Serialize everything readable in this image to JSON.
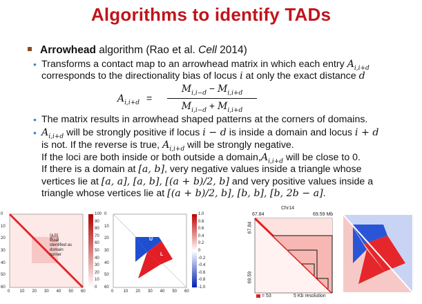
{
  "title": "Algorithms to identify TADs",
  "main_bullet": {
    "bold": "Arrowhead",
    "rest": " algorithm (Rao et al. ",
    "journal": "Cell",
    "year": " 2014)"
  },
  "bullet1": {
    "line1_pre": "Transforms a contact map to an arrowhead matrix in which each entry ",
    "line1_math": "A",
    "line1_sub": "i,i+d",
    "line2_pre": "corresponds to the directionality bias of locus ",
    "line2_var": "i",
    "line2_mid": " at only the exact distance ",
    "line2_var2": "d"
  },
  "formula": {
    "lhs": "A",
    "lhs_sub": "i,i+d",
    "eq": "=",
    "numerator": "M",
    "numerator_sub_a": "i,i−d",
    "minus": " − ",
    "numerator_b": "M",
    "numerator_sub_b": "i,i+d",
    "denominator": "M",
    "denominator_sub_a": "i,i−d",
    "plus": " + ",
    "denominator_b": "M",
    "denominator_sub_b": "i,i+d"
  },
  "bullet2": "The matrix results in arrowhead shaped patterns at the corners of domains.",
  "bullet3": {
    "l1_a": "A",
    "l1_sub": "i,i+d",
    "l1_b": " will be strongly positive if locus ",
    "l1_c": "i − d",
    "l1_d": " is inside a domain and locus ",
    "l1_e": "i + d",
    "l2_a": "is not. If the reverse is true, ",
    "l2_b": "A",
    "l2_sub": "i,i+d",
    "l2_c": " will be strongly negative.",
    "l3_a": "If the loci are both inside or both outside a domain,",
    "l3_b": "A",
    "l3_sub": "i,i+d",
    "l3_c": " will be close to 0.",
    "l4_a": "If there is a domain at ",
    "l4_b": "[a, b]",
    "l4_c": ", very negative values inside a triangle whose",
    "l5_a": "vertices lie at ",
    "l5_b": "[a, a], [a, b], [(a + b)/2, b]",
    "l5_c": " and very positive values inside a",
    "l6_a": "triangle whose vertices lie at ",
    "l6_b": "[(a + b)/2, b], [b, b], [b, 2b − a]",
    "l6_c": "."
  },
  "fig_left": {
    "yticks": [
      "0",
      "10",
      "20",
      "30",
      "40",
      "50",
      "60"
    ],
    "xticks": [
      "0",
      "10",
      "20",
      "30",
      "40",
      "50",
      "60"
    ],
    "annotation": [
      "(a,b)",
      "Pixel",
      "identified as",
      "domain",
      "corner"
    ],
    "colorbar": [
      "100",
      "90",
      "80",
      "70",
      "60",
      "50",
      "40",
      "30",
      "20",
      "10",
      "0"
    ],
    "colors": {
      "diag": "#e0282a",
      "block": "#f6c7c5",
      "bg": "#fde9e8"
    }
  },
  "fig_mid": {
    "yticks": [
      "0",
      "10",
      "20",
      "30",
      "40",
      "50",
      "60"
    ],
    "xticks": [
      "0",
      "10",
      "20",
      "30",
      "40",
      "50",
      "60"
    ],
    "label_u": "U",
    "label_l": "L",
    "colorbar": [
      "1.0",
      "0.8",
      "0.6",
      "0.4",
      "0.2",
      "0",
      "-0.2",
      "-0.4",
      "-0.6",
      "-0.8",
      "-1.0"
    ],
    "colors": {
      "pos": "#e21e26",
      "neg": "#1f4fd1"
    }
  },
  "fig_hic": {
    "chrom": "Chr14",
    "start": "67.84",
    "end": "69.59 Mb",
    "y_top": "67.84",
    "y_bottom": "69.59",
    "legend_val": "= 53",
    "resolution": "5 Kb resolution"
  }
}
